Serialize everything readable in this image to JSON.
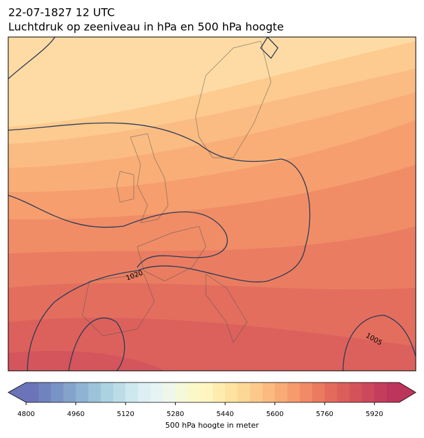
{
  "header": {
    "date": "22-07-1827 12 UTC",
    "title": "Luchtdruk op zeeniveau in hPa en 500 hPa hoogte"
  },
  "map": {
    "contour_labels": [
      "1020",
      "1005"
    ]
  },
  "colorbar": {
    "lim": [
      4800,
      6000
    ],
    "ticks": [
      4800,
      4960,
      5120,
      5280,
      5440,
      5600,
      5760,
      5920
    ],
    "colors": [
      "#6b74b9",
      "#7183bf",
      "#7a93c6",
      "#84a3cc",
      "#8fb3d3",
      "#9dc3da",
      "#abd2e1",
      "#bcdde8",
      "#cde8ef",
      "#dcf0f4",
      "#e6f4f3",
      "#eef7e9",
      "#f5f8d9",
      "#fbf8c8",
      "#fff5c2",
      "#feecae",
      "#fee3a0",
      "#fdd795",
      "#fcc98a",
      "#fbba7f",
      "#f9ab75",
      "#f69b6d",
      "#f18a66",
      "#ea7a60",
      "#e36b5d",
      "#dc5e5b",
      "#d4535b",
      "#cc485b",
      "#c43e5b",
      "#bd355b"
    ],
    "label": "500 hPa hoogte in meter"
  }
}
